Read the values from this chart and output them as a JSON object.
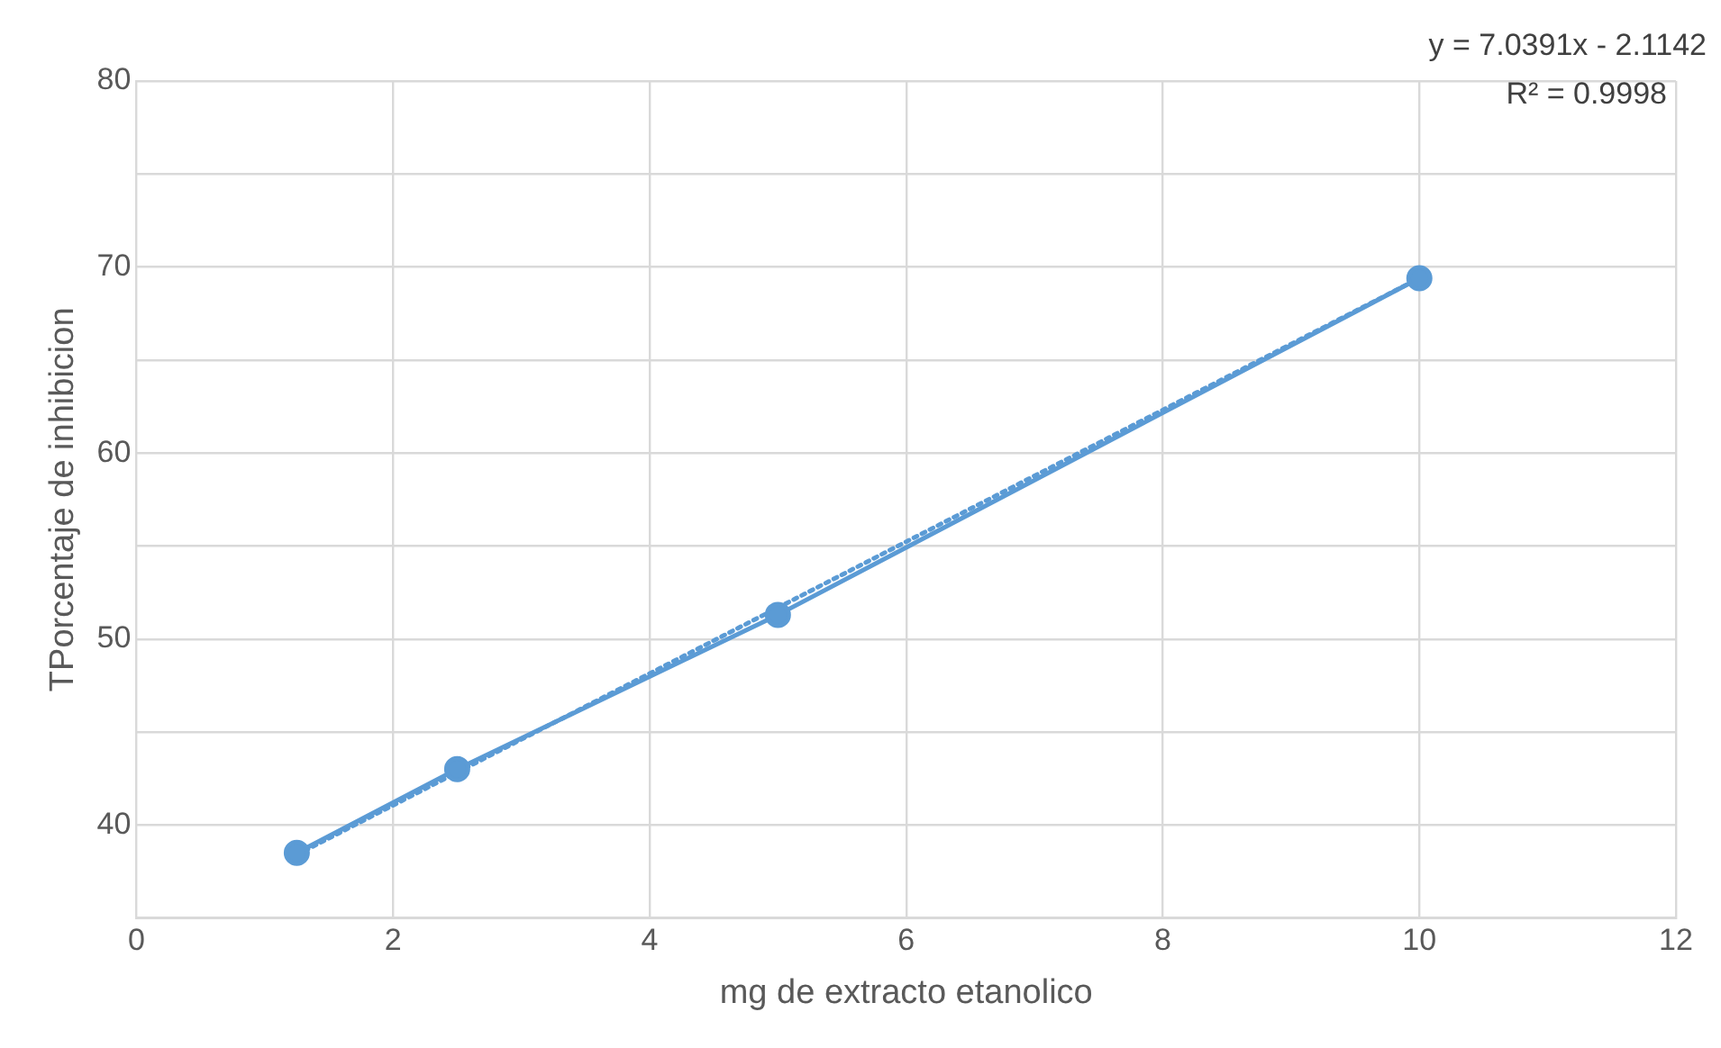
{
  "chart_data": {
    "type": "line",
    "xlabel": "mg de extracto etanolico",
    "ylabel": "TPorcentaje de inhibicion",
    "xlim": [
      0,
      12
    ],
    "xticks": [
      0,
      2,
      4,
      6,
      8,
      10,
      12
    ],
    "ylim": [
      35,
      80
    ],
    "yticks": [
      {
        "value": 35,
        "label": null
      },
      40,
      {
        "value": 45,
        "label": null
      },
      50,
      {
        "value": 55,
        "label": null
      },
      60,
      {
        "value": 65,
        "label": null
      },
      70,
      {
        "value": 75,
        "label": null
      },
      80
    ],
    "grid": true,
    "legend": false,
    "series": [
      {
        "color": "#5b9bd5",
        "marker": "circle",
        "line_style": "solid",
        "x": [
          1.25,
          2.5,
          5,
          10
        ],
        "values": [
          38.5,
          43.0,
          51.3,
          69.4
        ]
      },
      {
        "color": "#5b9bd5",
        "marker": "none",
        "line_style": "dotted",
        "x": [
          1.25,
          10
        ],
        "values": [
          38.4,
          69.4
        ]
      }
    ],
    "annotations": [
      "y = 7.0391x - 2.1142",
      "R² = 0.9998"
    ]
  }
}
